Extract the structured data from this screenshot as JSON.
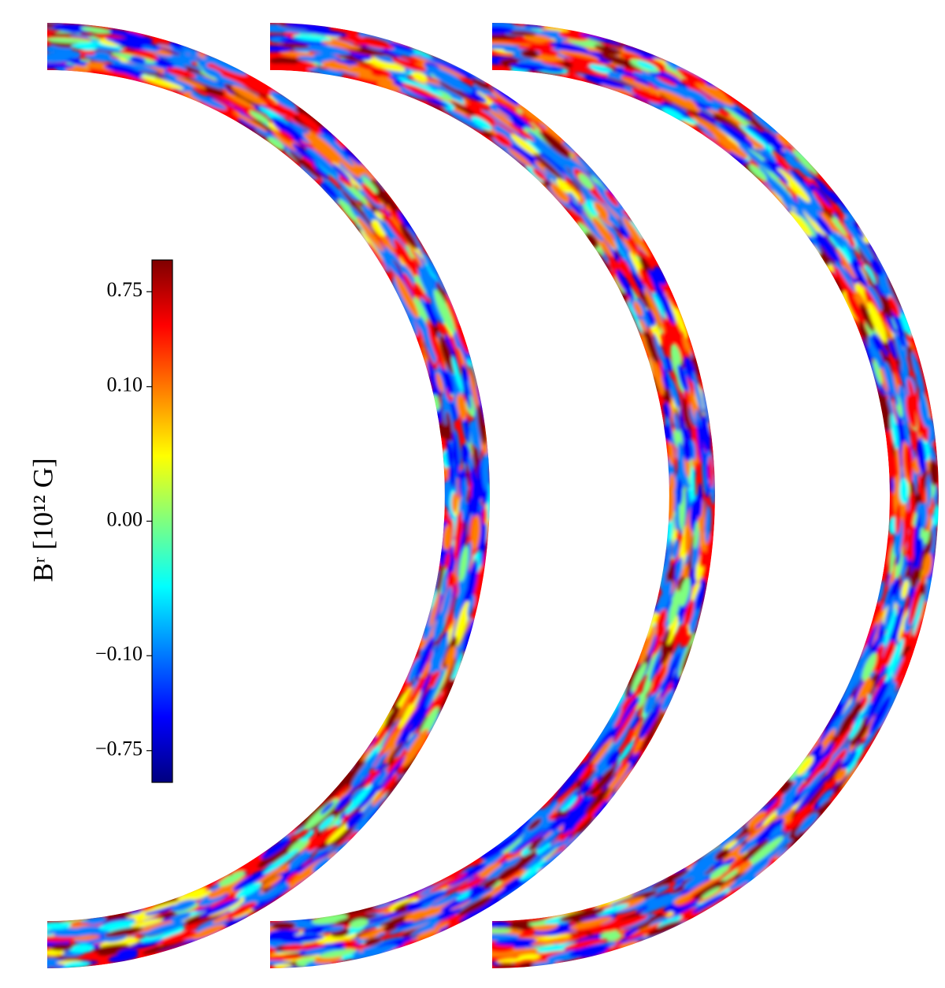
{
  "chart_data": {
    "type": "field-map",
    "colorbar_label": "Bʳ [10¹² G]",
    "norm": "symlog",
    "linthresh": 0.1,
    "linscale": 1.24,
    "clim": [
      -1.47,
      1.47
    ],
    "cticks": [
      {
        "value": 0.75,
        "label": "0.75"
      },
      {
        "value": 0.1,
        "label": "0.10"
      },
      {
        "value": 0,
        "label": "0.00"
      },
      {
        "value": -0.1,
        "label": "−0.10"
      },
      {
        "value": -0.75,
        "label": "−0.75"
      }
    ],
    "colormap": [
      "#00007f",
      "#0000ff",
      "#007fff",
      "#00ffff",
      "#7fff7f",
      "#ffff00",
      "#ff7f00",
      "#ff0000",
      "#7f0000"
    ]
  }
}
